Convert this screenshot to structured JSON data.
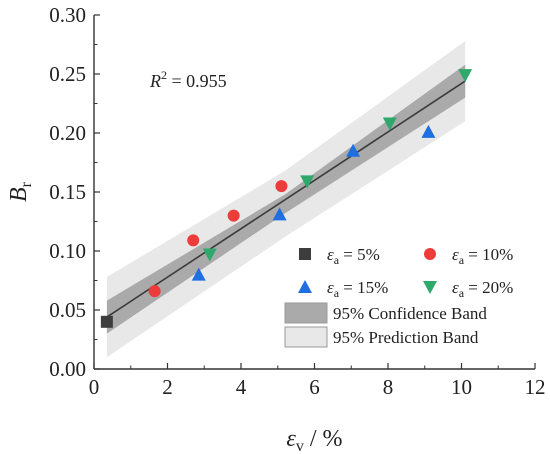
{
  "chart_data": {
    "type": "scatter",
    "xlabel": {
      "symbol": "ε",
      "sub": "v",
      "unit": " / %"
    },
    "ylabel": {
      "symbol": "B",
      "sub": "r"
    },
    "xlim": [
      0,
      12
    ],
    "ylim": [
      0.0,
      0.3
    ],
    "xticks": [
      "0",
      "2",
      "4",
      "6",
      "8",
      "10",
      "12"
    ],
    "yticks": [
      "0.00",
      "0.05",
      "0.10",
      "0.15",
      "0.20",
      "0.25",
      "0.30"
    ],
    "annotation": {
      "prefix": "R",
      "sup": "2",
      "suffix": " = 0.955"
    },
    "fit": {
      "x": [
        0.35,
        10.1
      ],
      "y": [
        0.044,
        0.244
      ]
    },
    "confidence_band": {
      "x": [
        0.35,
        5.2,
        10.1
      ],
      "upper": [
        0.058,
        0.148,
        0.258
      ],
      "lower": [
        0.03,
        0.132,
        0.23
      ]
    },
    "prediction_band": {
      "x": [
        0.35,
        5.2,
        10.1
      ],
      "upper": [
        0.078,
        0.168,
        0.278
      ],
      "lower": [
        0.01,
        0.112,
        0.21
      ]
    },
    "series": [
      {
        "name": "ε_a = 5%",
        "label": {
          "symbol": "ε",
          "sub": "a",
          "text": " = 5%"
        },
        "marker": "square",
        "color": "#3d3d3d",
        "x": [
          0.35
        ],
        "y": [
          0.04
        ]
      },
      {
        "name": "ε_a = 10%",
        "label": {
          "symbol": "ε",
          "sub": "a",
          "text": " = 10%"
        },
        "marker": "circle",
        "color": "#ee3b3b",
        "x": [
          1.65,
          2.7,
          3.8,
          5.1
        ],
        "y": [
          0.066,
          0.109,
          0.13,
          0.155
        ]
      },
      {
        "name": "ε_a = 15%",
        "label": {
          "symbol": "ε",
          "sub": "a",
          "text": " = 15%"
        },
        "marker": "triangle-up",
        "color": "#1f6fe0",
        "x": [
          2.85,
          5.05,
          7.05,
          9.1
        ],
        "y": [
          0.08,
          0.131,
          0.185,
          0.201
        ]
      },
      {
        "name": "ε_a = 20%",
        "label": {
          "symbol": "ε",
          "sub": "a",
          "text": " = 20%"
        },
        "marker": "triangle-down",
        "color": "#2ea86b",
        "x": [
          3.15,
          5.8,
          8.05,
          10.1
        ],
        "y": [
          0.097,
          0.159,
          0.208,
          0.249
        ]
      }
    ],
    "legend_bands": [
      {
        "label": "95% Confidence Band",
        "color": "#aaaaaa"
      },
      {
        "label": "95% Prediction Band",
        "color": "#e8e8e8"
      }
    ],
    "legend_position": "bottom-right"
  }
}
